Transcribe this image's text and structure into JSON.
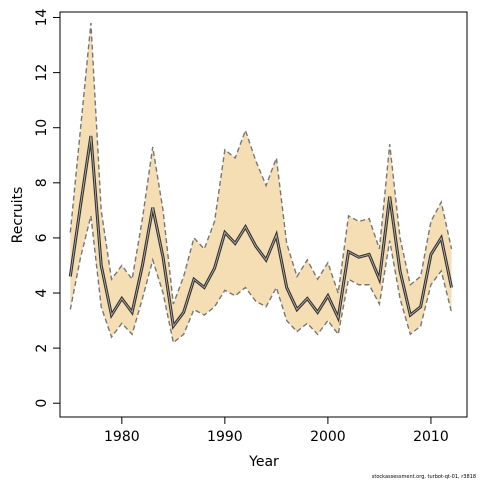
{
  "chart_data": {
    "type": "line",
    "title": "",
    "xlabel": "Year",
    "ylabel": "Recruits",
    "xlim": [
      1974,
      2013.5
    ],
    "ylim": [
      -0.5,
      14.2
    ],
    "x_ticks": [
      1980,
      1990,
      2000,
      2010
    ],
    "y_ticks": [
      0,
      2,
      4,
      6,
      8,
      10,
      12,
      14
    ],
    "grid": false,
    "legend": "none",
    "colors": {
      "band": "#f5deb3",
      "line": "#333333",
      "bound": "#777777",
      "axis": "#000000"
    },
    "x": [
      1975,
      1976,
      1977,
      1978,
      1979,
      1980,
      1981,
      1982,
      1983,
      1984,
      1985,
      1986,
      1987,
      1988,
      1989,
      1990,
      1991,
      1992,
      1993,
      1994,
      1995,
      1996,
      1997,
      1998,
      1999,
      2000,
      2001,
      2002,
      2003,
      2004,
      2005,
      2006,
      2007,
      2008,
      2009,
      2010,
      2011,
      2012
    ],
    "series": [
      {
        "values": [
          4.6,
          7.2,
          9.7,
          5.0,
          3.2,
          3.8,
          3.3,
          5.0,
          7.1,
          5.3,
          2.8,
          3.3,
          4.5,
          4.2,
          4.9,
          6.2,
          5.8,
          6.4,
          5.7,
          5.2,
          6.1,
          4.2,
          3.4,
          3.8,
          3.3,
          3.9,
          3.1,
          5.5,
          5.3,
          5.4,
          4.5,
          7.5,
          4.8,
          3.2,
          3.5,
          5.4,
          6.0,
          4.2
        ]
      },
      {
        "values": [
          6.2,
          10.0,
          13.8,
          7.0,
          4.5,
          5.0,
          4.5,
          6.7,
          9.3,
          7.0,
          3.6,
          4.6,
          6.0,
          5.6,
          6.6,
          9.2,
          8.9,
          9.9,
          8.8,
          7.9,
          8.9,
          5.8,
          4.6,
          5.2,
          4.5,
          5.1,
          4.0,
          6.8,
          6.6,
          6.7,
          5.6,
          9.4,
          6.0,
          4.3,
          4.6,
          6.6,
          7.3,
          5.6
        ]
      },
      {
        "values": [
          3.4,
          5.3,
          6.8,
          3.5,
          2.4,
          2.9,
          2.5,
          3.8,
          5.2,
          4.0,
          2.2,
          2.5,
          3.4,
          3.2,
          3.5,
          4.1,
          3.9,
          4.2,
          3.7,
          3.5,
          4.2,
          3.0,
          2.6,
          2.9,
          2.5,
          3.0,
          2.5,
          4.5,
          4.3,
          4.3,
          3.6,
          5.9,
          3.8,
          2.5,
          2.8,
          4.3,
          4.8,
          3.3
        ]
      }
    ]
  },
  "caption": "stockassessment.org, turbot-qt-01, r3818"
}
